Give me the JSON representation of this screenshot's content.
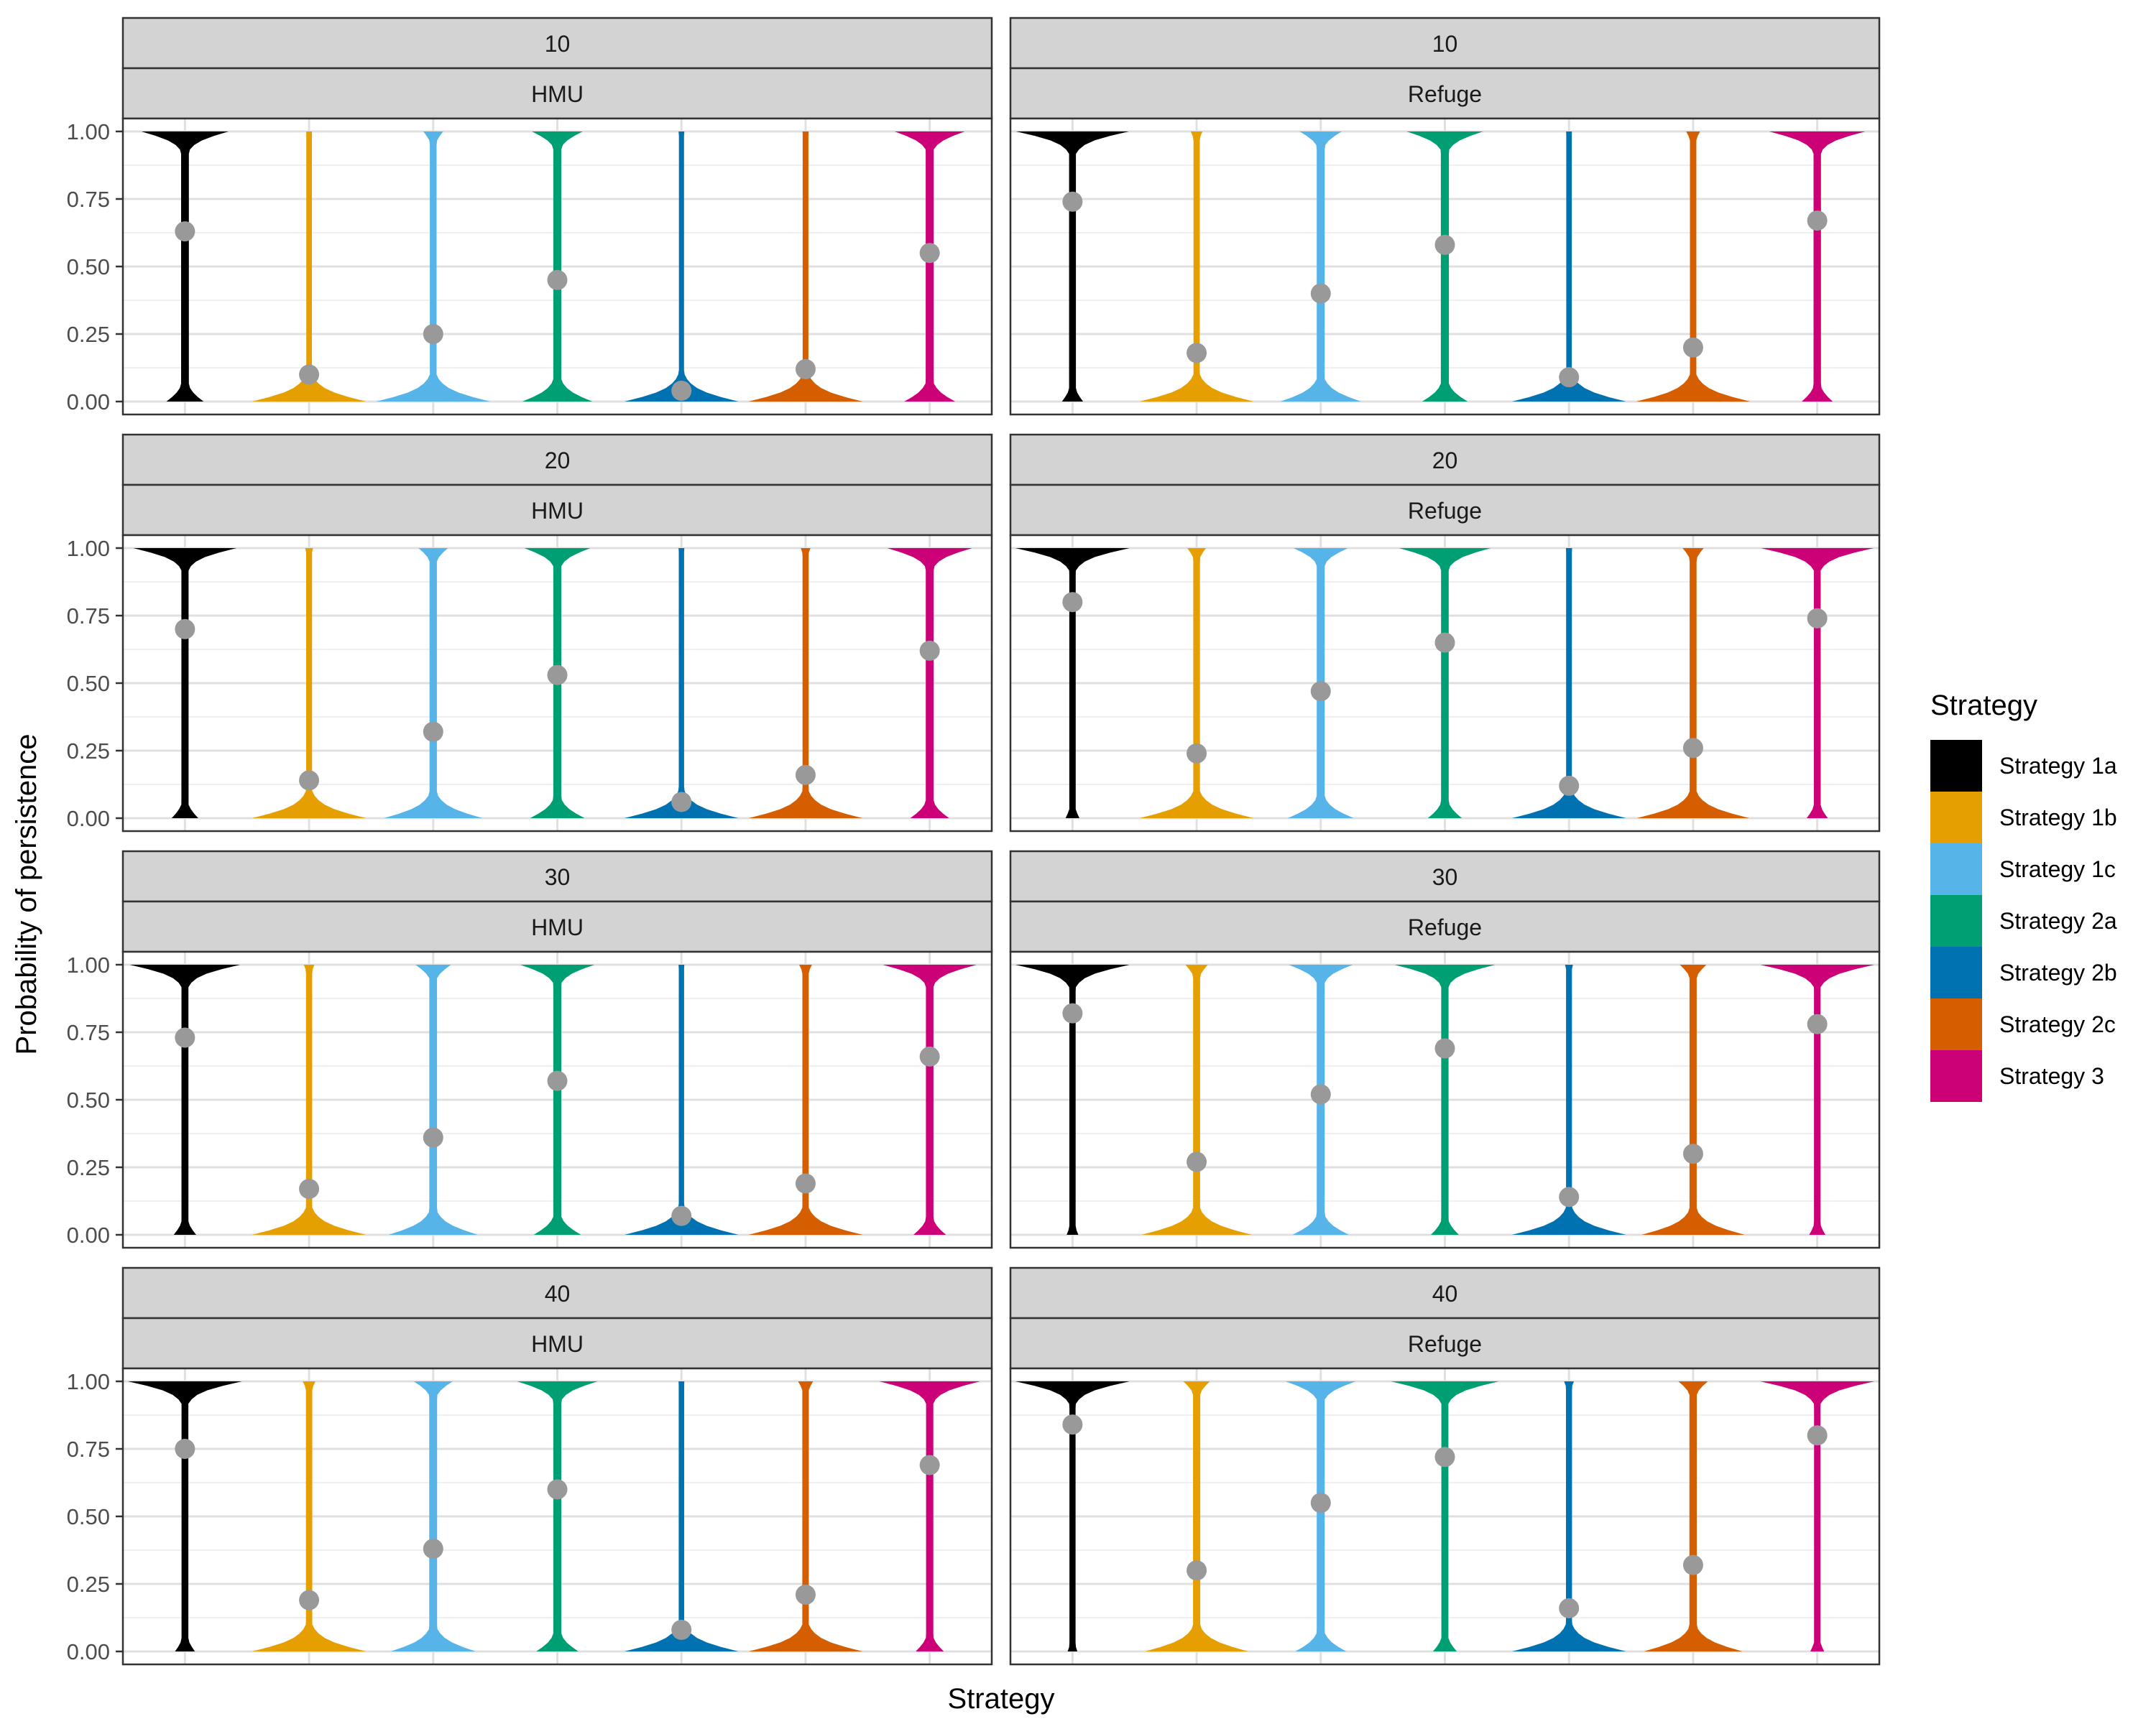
{
  "chart_data": {
    "type": "violin",
    "xlabel": "Strategy",
    "ylabel": "Probability of persistence",
    "ylim": [
      0,
      1
    ],
    "yticks": [
      "0.00",
      "0.25",
      "0.50",
      "0.75",
      "1.00"
    ],
    "grid": true,
    "legend": {
      "title": "Strategy",
      "placement": "right",
      "entries": [
        "Strategy 1a",
        "Strategy 1b",
        "Strategy 1c",
        "Strategy 2a",
        "Strategy 2b",
        "Strategy 2c",
        "Strategy 3"
      ]
    },
    "series_colors": [
      "#000000",
      "#E69F00",
      "#56B4E9",
      "#009E73",
      "#0072B2",
      "#D55E00",
      "#CC0077"
    ],
    "marker_color": "#999999",
    "facet_rows": [
      "10",
      "20",
      "30",
      "40"
    ],
    "facet_cols": [
      "HMU",
      "Refuge"
    ],
    "panels": [
      {
        "row": "10",
        "col": "HMU",
        "means": [
          0.63,
          0.1,
          0.25,
          0.45,
          0.04,
          0.12,
          0.55
        ]
      },
      {
        "row": "10",
        "col": "Refuge",
        "means": [
          0.74,
          0.18,
          0.4,
          0.58,
          0.09,
          0.2,
          0.67
        ]
      },
      {
        "row": "20",
        "col": "HMU",
        "means": [
          0.7,
          0.14,
          0.32,
          0.53,
          0.06,
          0.16,
          0.62
        ]
      },
      {
        "row": "20",
        "col": "Refuge",
        "means": [
          0.8,
          0.24,
          0.47,
          0.65,
          0.12,
          0.26,
          0.74
        ]
      },
      {
        "row": "30",
        "col": "HMU",
        "means": [
          0.73,
          0.17,
          0.36,
          0.57,
          0.07,
          0.19,
          0.66
        ]
      },
      {
        "row": "30",
        "col": "Refuge",
        "means": [
          0.82,
          0.27,
          0.52,
          0.69,
          0.14,
          0.3,
          0.78
        ]
      },
      {
        "row": "40",
        "col": "HMU",
        "means": [
          0.75,
          0.19,
          0.38,
          0.6,
          0.08,
          0.21,
          0.69
        ]
      },
      {
        "row": "40",
        "col": "Refuge",
        "means": [
          0.84,
          0.3,
          0.55,
          0.72,
          0.16,
          0.32,
          0.8
        ]
      }
    ]
  }
}
